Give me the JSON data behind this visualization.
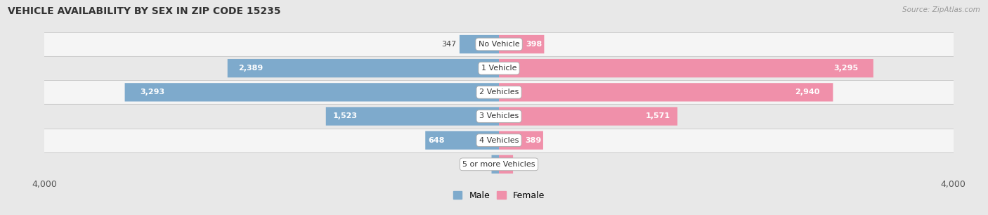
{
  "title": "VEHICLE AVAILABILITY BY SEX IN ZIP CODE 15235",
  "source": "Source: ZipAtlas.com",
  "categories": [
    "No Vehicle",
    "1 Vehicle",
    "2 Vehicles",
    "3 Vehicles",
    "4 Vehicles",
    "5 or more Vehicles"
  ],
  "male_values": [
    347,
    2389,
    3293,
    1523,
    648,
    65
  ],
  "female_values": [
    398,
    3295,
    2940,
    1571,
    389,
    124
  ],
  "male_color": "#7eaacc",
  "female_color": "#f090aa",
  "male_color_light": "#a8c8e8",
  "female_color_light": "#f5b8ca",
  "label_color_inside": "#ffffff",
  "label_color_outside": "#666666",
  "label_color_outside_dark": "#444444",
  "bar_height": 0.62,
  "xlim": 4000,
  "bg_color": "#e8e8e8",
  "row_colors": [
    "#f5f5f5",
    "#e8e8e8",
    "#f5f5f5",
    "#e8e8e8",
    "#f5f5f5",
    "#e8e8e8"
  ],
  "title_fontsize": 10,
  "tick_fontsize": 9,
  "bar_label_fontsize": 8,
  "category_fontsize": 8,
  "inside_label_threshold": 350
}
